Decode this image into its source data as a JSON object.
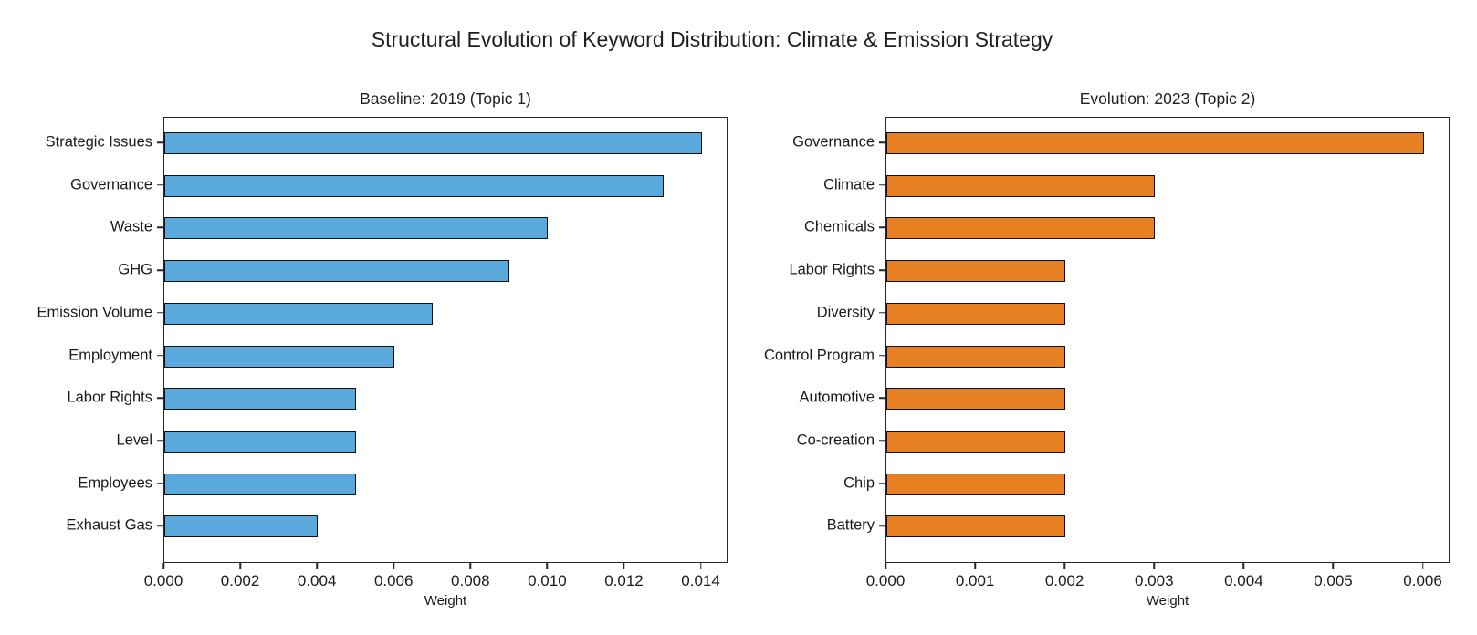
{
  "figure": {
    "title": "Structural Evolution of Keyword Distribution: Climate & Emission Strategy",
    "background": "#ffffff",
    "text_color": "#1a1a1a"
  },
  "chart_data": [
    {
      "type": "bar",
      "orientation": "horizontal",
      "title": "Baseline: 2019 (Topic 1)",
      "xlabel": "Weight",
      "categories": [
        "Strategic Issues",
        "Governance",
        "Waste",
        "GHG",
        "Emission Volume",
        "Employment",
        "Labor Rights",
        "Level",
        "Employees",
        "Exhaust Gas"
      ],
      "values": [
        0.014,
        0.013,
        0.01,
        0.009,
        0.007,
        0.006,
        0.005,
        0.005,
        0.005,
        0.004
      ],
      "xlim": [
        0,
        0.0147
      ],
      "xticks": [
        0.0,
        0.002,
        0.004,
        0.006,
        0.008,
        0.01,
        0.012,
        0.014
      ],
      "xtick_labels": [
        "0.000",
        "0.002",
        "0.004",
        "0.006",
        "0.008",
        "0.010",
        "0.012",
        "0.014"
      ],
      "bar_color": "#5aa9dc",
      "edge_color": "#111111",
      "grid": false,
      "legend_position": "none"
    },
    {
      "type": "bar",
      "orientation": "horizontal",
      "title": "Evolution: 2023 (Topic 2)",
      "xlabel": "Weight",
      "categories": [
        "Governance",
        "Climate",
        "Chemicals",
        "Labor Rights",
        "Diversity",
        "Control Program",
        "Automotive",
        "Co-creation",
        "Chip",
        "Battery"
      ],
      "values": [
        0.006,
        0.003,
        0.003,
        0.002,
        0.002,
        0.002,
        0.002,
        0.002,
        0.002,
        0.002
      ],
      "xlim": [
        0,
        0.0063
      ],
      "xticks": [
        0.0,
        0.001,
        0.002,
        0.003,
        0.004,
        0.005,
        0.006
      ],
      "xtick_labels": [
        "0.000",
        "0.001",
        "0.002",
        "0.003",
        "0.004",
        "0.005",
        "0.006"
      ],
      "bar_color": "#e68023",
      "edge_color": "#111111",
      "grid": false,
      "legend_position": "none"
    }
  ]
}
